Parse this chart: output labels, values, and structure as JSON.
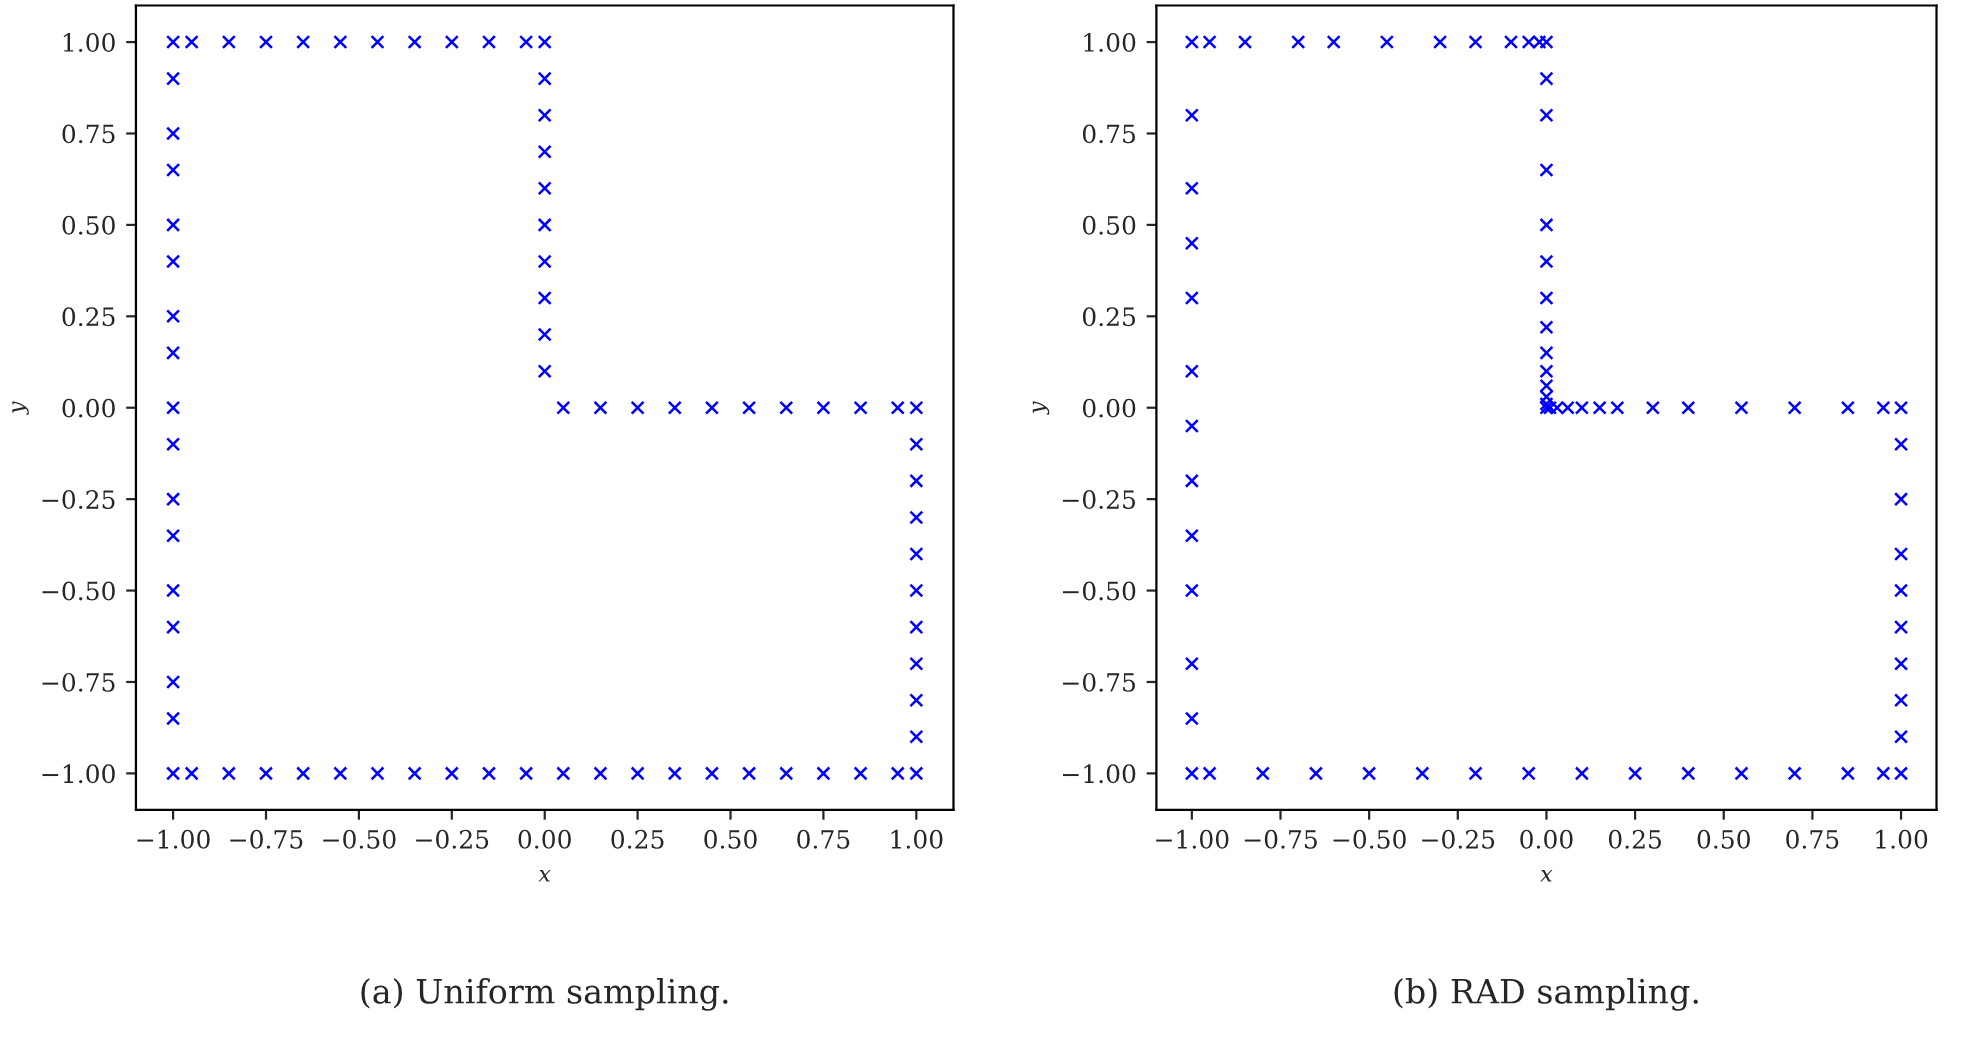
{
  "chart_data": [
    {
      "type": "scatter",
      "xlabel": "x",
      "ylabel": "y",
      "xlim": [
        -1.1,
        1.1
      ],
      "ylim": [
        -1.1,
        1.1
      ],
      "marker": "cross",
      "grid": false,
      "xticks": [
        {
          "value": -1,
          "label": "−1.00"
        },
        {
          "value": -0.75,
          "label": "−0.75"
        },
        {
          "value": -0.5,
          "label": "−0.50"
        },
        {
          "value": -0.25,
          "label": "−0.25"
        },
        {
          "value": 0,
          "label": "0.00"
        },
        {
          "value": 0.25,
          "label": "0.25"
        },
        {
          "value": 0.5,
          "label": "0.50"
        },
        {
          "value": 0.75,
          "label": "0.75"
        },
        {
          "value": 1,
          "label": "1.00"
        }
      ],
      "yticks": [
        {
          "value": -1,
          "label": "−1.00"
        },
        {
          "value": -0.75,
          "label": "−0.75"
        },
        {
          "value": -0.5,
          "label": "−0.50"
        },
        {
          "value": -0.25,
          "label": "−0.25"
        },
        {
          "value": 0,
          "label": "0.00"
        },
        {
          "value": 0.25,
          "label": "0.25"
        },
        {
          "value": 0.5,
          "label": "0.50"
        },
        {
          "value": 0.75,
          "label": "0.75"
        },
        {
          "value": 1,
          "label": "1.00"
        }
      ],
      "annotations": [
        "(a) Uniform sampling."
      ],
      "series": [
        {
          "color": "#0000ff",
          "x": [
            -1,
            -1,
            -1,
            -1,
            -1,
            -1,
            -1,
            -1,
            -1,
            -1,
            -1,
            -1,
            -1,
            -1,
            -1,
            -1,
            -1,
            -0.95,
            -0.85,
            -0.75,
            -0.65,
            -0.55,
            -0.45,
            -0.35,
            -0.25,
            -0.15,
            -0.05,
            0,
            0,
            0,
            0,
            0,
            0,
            0,
            0,
            0,
            0,
            0.05,
            0.15,
            0.25,
            0.35,
            0.45,
            0.55,
            0.65,
            0.75,
            0.85,
            0.95,
            1,
            1,
            1,
            1,
            1,
            1,
            1,
            1,
            1,
            1,
            1,
            0.95,
            0.85,
            0.75,
            0.65,
            0.55,
            0.45,
            0.35,
            0.25,
            0.15,
            0.05,
            -0.05,
            -0.15,
            -0.25,
            -0.35,
            -0.45,
            -0.55,
            -0.65,
            -0.75,
            -0.85,
            -0.95
          ],
          "values": [
            -1,
            -0.85,
            -0.75,
            -0.6,
            -0.5,
            -0.35,
            -0.25,
            -0.1,
            0,
            0.15,
            0.25,
            0.4,
            0.5,
            0.65,
            0.75,
            0.9,
            1,
            1,
            1,
            1,
            1,
            1,
            1,
            1,
            1,
            1,
            1,
            1,
            0.9,
            0.8,
            0.7,
            0.6,
            0.5,
            0.4,
            0.3,
            0.2,
            0.1,
            0,
            0,
            0,
            0,
            0,
            0,
            0,
            0,
            0,
            0,
            0,
            -0.1,
            -0.2,
            -0.3,
            -0.4,
            -0.5,
            -0.6,
            -0.7,
            -0.8,
            -0.9,
            -1,
            -1,
            -1,
            -1,
            -1,
            -1,
            -1,
            -1,
            -1,
            -1,
            -1,
            -1,
            -1,
            -1,
            -1,
            -1,
            -1,
            -1,
            -1,
            -1,
            -1
          ]
        }
      ]
    },
    {
      "type": "scatter",
      "xlabel": "x",
      "ylabel": "y",
      "xlim": [
        -1.1,
        1.1
      ],
      "ylim": [
        -1.1,
        1.1
      ],
      "marker": "cross",
      "grid": false,
      "xticks": [
        {
          "value": -1,
          "label": "−1.00"
        },
        {
          "value": -0.75,
          "label": "−0.75"
        },
        {
          "value": -0.5,
          "label": "−0.50"
        },
        {
          "value": -0.25,
          "label": "−0.25"
        },
        {
          "value": 0,
          "label": "0.00"
        },
        {
          "value": 0.25,
          "label": "0.25"
        },
        {
          "value": 0.5,
          "label": "0.50"
        },
        {
          "value": 0.75,
          "label": "0.75"
        },
        {
          "value": 1,
          "label": "1.00"
        }
      ],
      "yticks": [
        {
          "value": -1,
          "label": "−1.00"
        },
        {
          "value": -0.75,
          "label": "−0.75"
        },
        {
          "value": -0.5,
          "label": "−0.50"
        },
        {
          "value": -0.25,
          "label": "−0.25"
        },
        {
          "value": 0,
          "label": "0.00"
        },
        {
          "value": 0.25,
          "label": "0.25"
        },
        {
          "value": 0.5,
          "label": "0.50"
        },
        {
          "value": 0.75,
          "label": "0.75"
        },
        {
          "value": 1,
          "label": "1.00"
        }
      ],
      "annotations": [
        "(b) RAD sampling."
      ],
      "series": [
        {
          "color": "#0000ff",
          "x": [
            -1,
            -1,
            -1,
            -1,
            -1,
            -1,
            -1,
            -1,
            -1,
            -1,
            -1,
            -1,
            -1,
            -0.95,
            -0.85,
            -0.7,
            -0.6,
            -0.45,
            -0.3,
            -0.2,
            -0.1,
            -0.05,
            -0.02,
            0,
            0,
            0,
            0,
            0,
            0,
            0,
            0,
            0,
            0,
            0,
            0,
            0,
            0,
            0.01,
            0.03,
            0.06,
            0.1,
            0.15,
            0.2,
            0.3,
            0.4,
            0.55,
            0.7,
            0.85,
            0.95,
            1,
            1,
            1,
            1,
            1,
            1,
            1,
            1,
            1,
            1,
            0.95,
            0.85,
            0.7,
            0.55,
            0.4,
            0.25,
            0.1,
            -0.05,
            -0.2,
            -0.35,
            -0.5,
            -0.65,
            -0.8,
            -0.95
          ],
          "values": [
            -1,
            -0.85,
            -0.7,
            -0.5,
            -0.35,
            -0.2,
            -0.05,
            0.1,
            0.3,
            0.45,
            0.6,
            0.8,
            1,
            1,
            1,
            1,
            1,
            1,
            1,
            1,
            1,
            1,
            1,
            1,
            0.9,
            0.8,
            0.65,
            0.5,
            0.4,
            0.3,
            0.22,
            0.15,
            0.1,
            0.06,
            0.03,
            0.01,
            0,
            0,
            0,
            0,
            0,
            0,
            0,
            0,
            0,
            0,
            0,
            0,
            0,
            0,
            -0.1,
            -0.25,
            -0.4,
            -0.5,
            -0.6,
            -0.7,
            -0.8,
            -0.9,
            -1,
            -1,
            -1,
            -1,
            -1,
            -1,
            -1,
            -1,
            -1,
            -1,
            -1,
            -1,
            -1,
            -1,
            -1
          ]
        }
      ]
    }
  ]
}
